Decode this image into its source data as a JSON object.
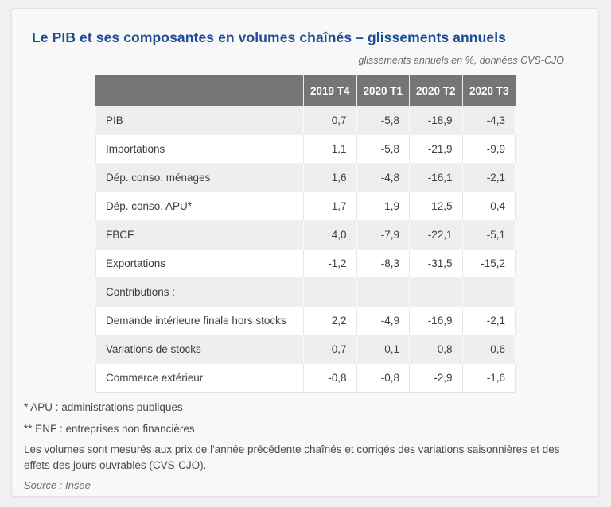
{
  "title": "Le PIB et ses composantes en volumes chaînés – glissements annuels",
  "subtitle": "glissements annuels en %, données CVS-CJO",
  "table": {
    "columns": [
      "",
      "2019 T4",
      "2020 T1",
      "2020 T2",
      "2020 T3"
    ],
    "rows": [
      {
        "label": "PIB",
        "values": [
          "0,7",
          "-5,8",
          "-18,9",
          "-4,3"
        ]
      },
      {
        "label": "Importations",
        "values": [
          "1,1",
          "-5,8",
          "-21,9",
          "-9,9"
        ]
      },
      {
        "label": "Dép. conso. ménages",
        "values": [
          "1,6",
          "-4,8",
          "-16,1",
          "-2,1"
        ]
      },
      {
        "label": "Dép. conso. APU*",
        "values": [
          "1,7",
          "-1,9",
          "-12,5",
          "0,4"
        ]
      },
      {
        "label": "FBCF",
        "values": [
          "4,0",
          "-7,9",
          "-22,1",
          "-5,1"
        ]
      },
      {
        "label": "Exportations",
        "values": [
          "-1,2",
          "-8,3",
          "-31,5",
          "-15,2"
        ]
      },
      {
        "label": "Contributions :",
        "values": [
          "",
          "",
          "",
          ""
        ]
      },
      {
        "label": "Demande intérieure finale hors stocks",
        "values": [
          "2,2",
          "-4,9",
          "-16,9",
          "-2,1"
        ]
      },
      {
        "label": "Variations de stocks",
        "values": [
          "-0,7",
          "-0,1",
          "0,8",
          "-0,6"
        ]
      },
      {
        "label": "Commerce extérieur",
        "values": [
          "-0,8",
          "-0,8",
          "-2,9",
          "-1,6"
        ]
      }
    ]
  },
  "footnotes": [
    "* APU : administrations publiques",
    "** ENF : entreprises non financières",
    "Les volumes sont mesurés aux prix de l'année précédente chaînés et corrigés des variations saisonnières et des effets des jours ouvrables (CVS-CJO)."
  ],
  "source": "Source : Insee",
  "colors": {
    "page_bg": "#f0f0f0",
    "card_bg": "#f8f8f8",
    "card_border": "#e2e2e2",
    "title_color": "#1f4c94",
    "subtitle_color": "#626c75",
    "header_bg": "#757575",
    "header_text": "#ffffff",
    "row_alt_bg": "#eeeeee",
    "row_bg": "#ffffff",
    "cell_text": "#3d3d3d",
    "footnote_color": "#4b4b4b",
    "source_color": "#707070"
  },
  "chart_data": {
    "type": "table",
    "title": "Le PIB et ses composantes en volumes chaînés – glissements annuels",
    "subtitle": "glissements annuels en %, données CVS-CJO",
    "unit": "glissements annuels en %, données CVS-CJO",
    "columns": [
      "2019 T4",
      "2020 T1",
      "2020 T2",
      "2020 T3"
    ],
    "rows": [
      {
        "label": "PIB",
        "values": [
          0.7,
          -5.8,
          -18.9,
          -4.3
        ]
      },
      {
        "label": "Importations",
        "values": [
          1.1,
          -5.8,
          -21.9,
          -9.9
        ]
      },
      {
        "label": "Dép. conso. ménages",
        "values": [
          1.6,
          -4.8,
          -16.1,
          -2.1
        ]
      },
      {
        "label": "Dép. conso. APU*",
        "values": [
          1.7,
          -1.9,
          -12.5,
          0.4
        ]
      },
      {
        "label": "FBCF",
        "values": [
          4.0,
          -7.9,
          -22.1,
          -5.1
        ]
      },
      {
        "label": "Exportations",
        "values": [
          -1.2,
          -8.3,
          -31.5,
          -15.2
        ]
      },
      {
        "label": "Contributions :",
        "values": [
          null,
          null,
          null,
          null
        ]
      },
      {
        "label": "Demande intérieure finale hors stocks",
        "values": [
          2.2,
          -4.9,
          -16.9,
          -2.1
        ]
      },
      {
        "label": "Variations de stocks",
        "values": [
          -0.7,
          -0.1,
          0.8,
          -0.6
        ]
      },
      {
        "label": "Commerce extérieur",
        "values": [
          -0.8,
          -0.8,
          -2.9,
          -1.6
        ]
      }
    ],
    "source": "Insee"
  }
}
